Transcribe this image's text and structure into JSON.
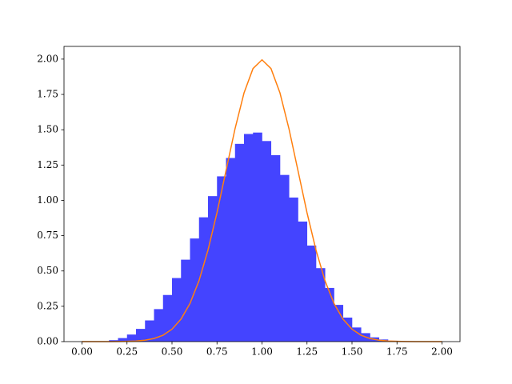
{
  "chart_data": {
    "type": "histogram",
    "bins": [
      0.1,
      0.15,
      0.2,
      0.25,
      0.3,
      0.35,
      0.4,
      0.45,
      0.5,
      0.55,
      0.6,
      0.65,
      0.7,
      0.75,
      0.8,
      0.85,
      0.9,
      0.95,
      1.0,
      1.05,
      1.1,
      1.15,
      1.2,
      1.25,
      1.3,
      1.35,
      1.4,
      1.45,
      1.5,
      1.55,
      1.6,
      1.65,
      1.7,
      1.75,
      1.8
    ],
    "values": [
      0.002,
      0.01,
      0.025,
      0.05,
      0.09,
      0.15,
      0.23,
      0.33,
      0.45,
      0.58,
      0.73,
      0.88,
      1.03,
      1.17,
      1.3,
      1.4,
      1.47,
      1.48,
      1.42,
      1.32,
      1.18,
      1.02,
      0.85,
      0.68,
      0.52,
      0.38,
      0.26,
      0.17,
      0.1,
      0.06,
      0.03,
      0.015,
      0.006,
      0.002
    ],
    "color": "#4444ff",
    "overlay": {
      "type": "line",
      "color": "#ff7f0e",
      "x": [
        0,
        0.05,
        0.1,
        0.15,
        0.2,
        0.25,
        0.3,
        0.35,
        0.4,
        0.45,
        0.5,
        0.55,
        0.6,
        0.65,
        0.7,
        0.75,
        0.8,
        0.85,
        0.9,
        0.95,
        1.0,
        1.05,
        1.1,
        1.15,
        1.2,
        1.25,
        1.3,
        1.35,
        1.4,
        1.45,
        1.5,
        1.55,
        1.6,
        1.65,
        1.7,
        1.75,
        1.8,
        1.85,
        1.9,
        1.95,
        2.0
      ],
      "values": [
        0,
        0,
        0,
        0,
        0.001,
        0.002,
        0.004,
        0.01,
        0.022,
        0.045,
        0.088,
        0.159,
        0.27,
        0.431,
        0.648,
        0.913,
        1.21,
        1.506,
        1.76,
        1.933,
        1.995,
        1.933,
        1.76,
        1.506,
        1.21,
        0.913,
        0.648,
        0.431,
        0.27,
        0.159,
        0.088,
        0.045,
        0.022,
        0.01,
        0.004,
        0.002,
        0.001,
        0,
        0,
        0,
        0
      ]
    },
    "xlim": [
      -0.1,
      2.1
    ],
    "ylim": [
      0,
      2.09
    ],
    "xticks": [
      {
        "value": 0,
        "label": "0.00"
      },
      {
        "value": 0.25,
        "label": "0.25"
      },
      {
        "value": 0.5,
        "label": "0.50"
      },
      {
        "value": 0.75,
        "label": "0.75"
      },
      {
        "value": 1,
        "label": "1.00"
      },
      {
        "value": 1.25,
        "label": "1.25"
      },
      {
        "value": 1.5,
        "label": "1.50"
      },
      {
        "value": 1.75,
        "label": "1.75"
      },
      {
        "value": 2,
        "label": "2.00"
      }
    ],
    "yticks": [
      {
        "value": 0,
        "label": "0.00"
      },
      {
        "value": 0.25,
        "label": "0.25"
      },
      {
        "value": 0.5,
        "label": "0.50"
      },
      {
        "value": 0.75,
        "label": "0.75"
      },
      {
        "value": 1,
        "label": "1.00"
      },
      {
        "value": 1.25,
        "label": "1.25"
      },
      {
        "value": 1.5,
        "label": "1.50"
      },
      {
        "value": 1.75,
        "label": "1.75"
      },
      {
        "value": 2,
        "label": "2.00"
      }
    ]
  }
}
